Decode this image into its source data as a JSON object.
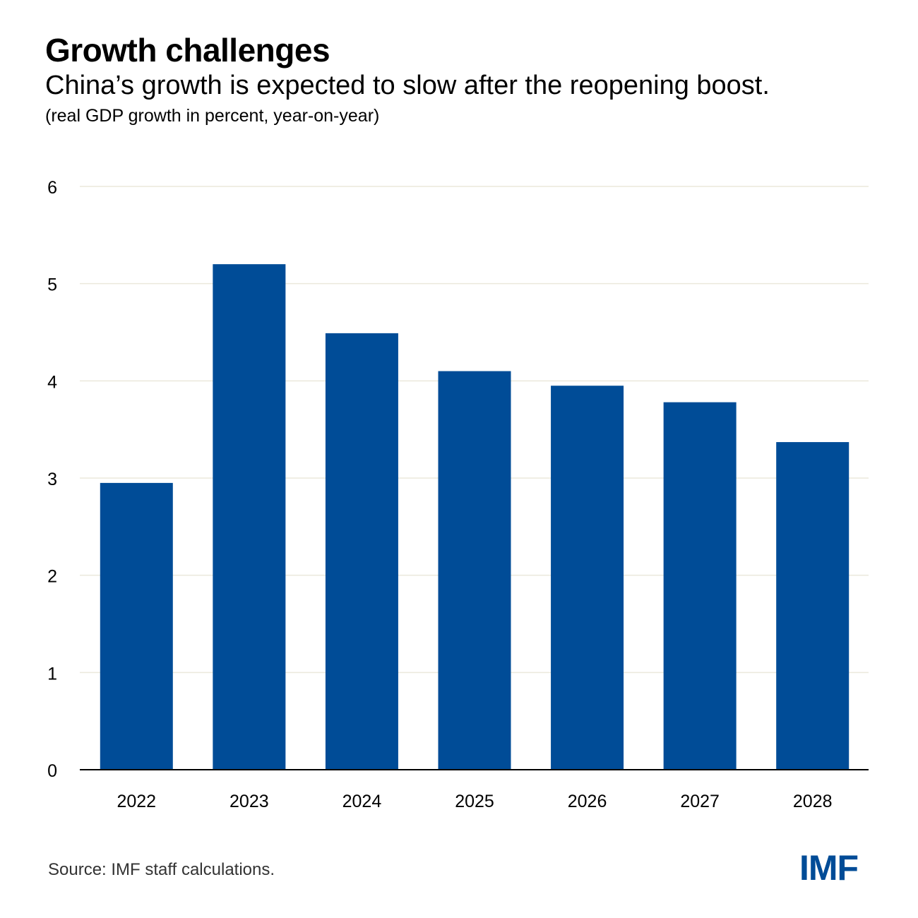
{
  "header": {
    "title": "Growth challenges",
    "subtitle": "China’s growth is expected to slow after the reopening boost.",
    "note": "(real GDP growth in percent, year-on-year)"
  },
  "footer": {
    "source": "Source: IMF staff calculations.",
    "logo_text": "IMF"
  },
  "colors": {
    "bar": "#004c97",
    "grid": "#ebe9dc",
    "axis": "#000000",
    "logo": "#004c97"
  },
  "chart_data": {
    "type": "bar",
    "categories": [
      "2022",
      "2023",
      "2024",
      "2025",
      "2026",
      "2027",
      "2028"
    ],
    "values": [
      2.95,
      5.2,
      4.49,
      4.1,
      3.95,
      3.78,
      3.37
    ],
    "ylim": [
      0,
      6
    ],
    "yticks": [
      0,
      1,
      2,
      3,
      4,
      5,
      6
    ],
    "grid": true,
    "legend": "none"
  }
}
